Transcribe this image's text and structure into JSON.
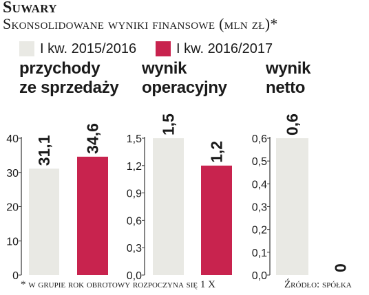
{
  "header": {
    "title": "Suwary",
    "subtitle": "Skonsolidowane wyniki finansowe (mln zł)*"
  },
  "legend": [
    {
      "label": "I kw. 2015/2016",
      "color": "#e9e9e4"
    },
    {
      "label": "I kw. 2016/2017",
      "color": "#c8234e"
    }
  ],
  "chart_data": [
    {
      "type": "bar",
      "title_lines": [
        "przychody",
        "ze sprzedaży"
      ],
      "categories": [
        "I kw. 2015/2016",
        "I kw. 2016/2017"
      ],
      "values": [
        31.1,
        34.6
      ],
      "value_labels": [
        "31,1",
        "34,6"
      ],
      "ylim": [
        0,
        40
      ],
      "ticks": [
        "0",
        "10",
        "20",
        "30",
        "40"
      ],
      "xlabel": "",
      "ylabel": ""
    },
    {
      "type": "bar",
      "title_lines": [
        "wynik",
        "operacyjny"
      ],
      "categories": [
        "I kw. 2015/2016",
        "I kw. 2016/2017"
      ],
      "values": [
        1.5,
        1.2
      ],
      "value_labels": [
        "1,5",
        "1,2"
      ],
      "ylim": [
        0,
        1.5
      ],
      "ticks": [
        "0,0",
        "0,3",
        "0,6",
        "0,9",
        "1,2",
        "1,5"
      ],
      "xlabel": "",
      "ylabel": ""
    },
    {
      "type": "bar",
      "title_lines": [
        "wynik",
        "netto"
      ],
      "categories": [
        "I kw. 2015/2016",
        "I kw. 2016/2017"
      ],
      "values": [
        0.6,
        0
      ],
      "value_labels": [
        "0,6",
        "0"
      ],
      "ylim": [
        0,
        0.6
      ],
      "ticks": [
        "0,0",
        "0,1",
        "0,2",
        "0,3",
        "0,4",
        "0,5",
        "0,6"
      ],
      "xlabel": "",
      "ylabel": ""
    }
  ],
  "footnote": "* w grupie rok obrotowy rozpoczyna się 1 X",
  "source": "Źródło: spółka"
}
